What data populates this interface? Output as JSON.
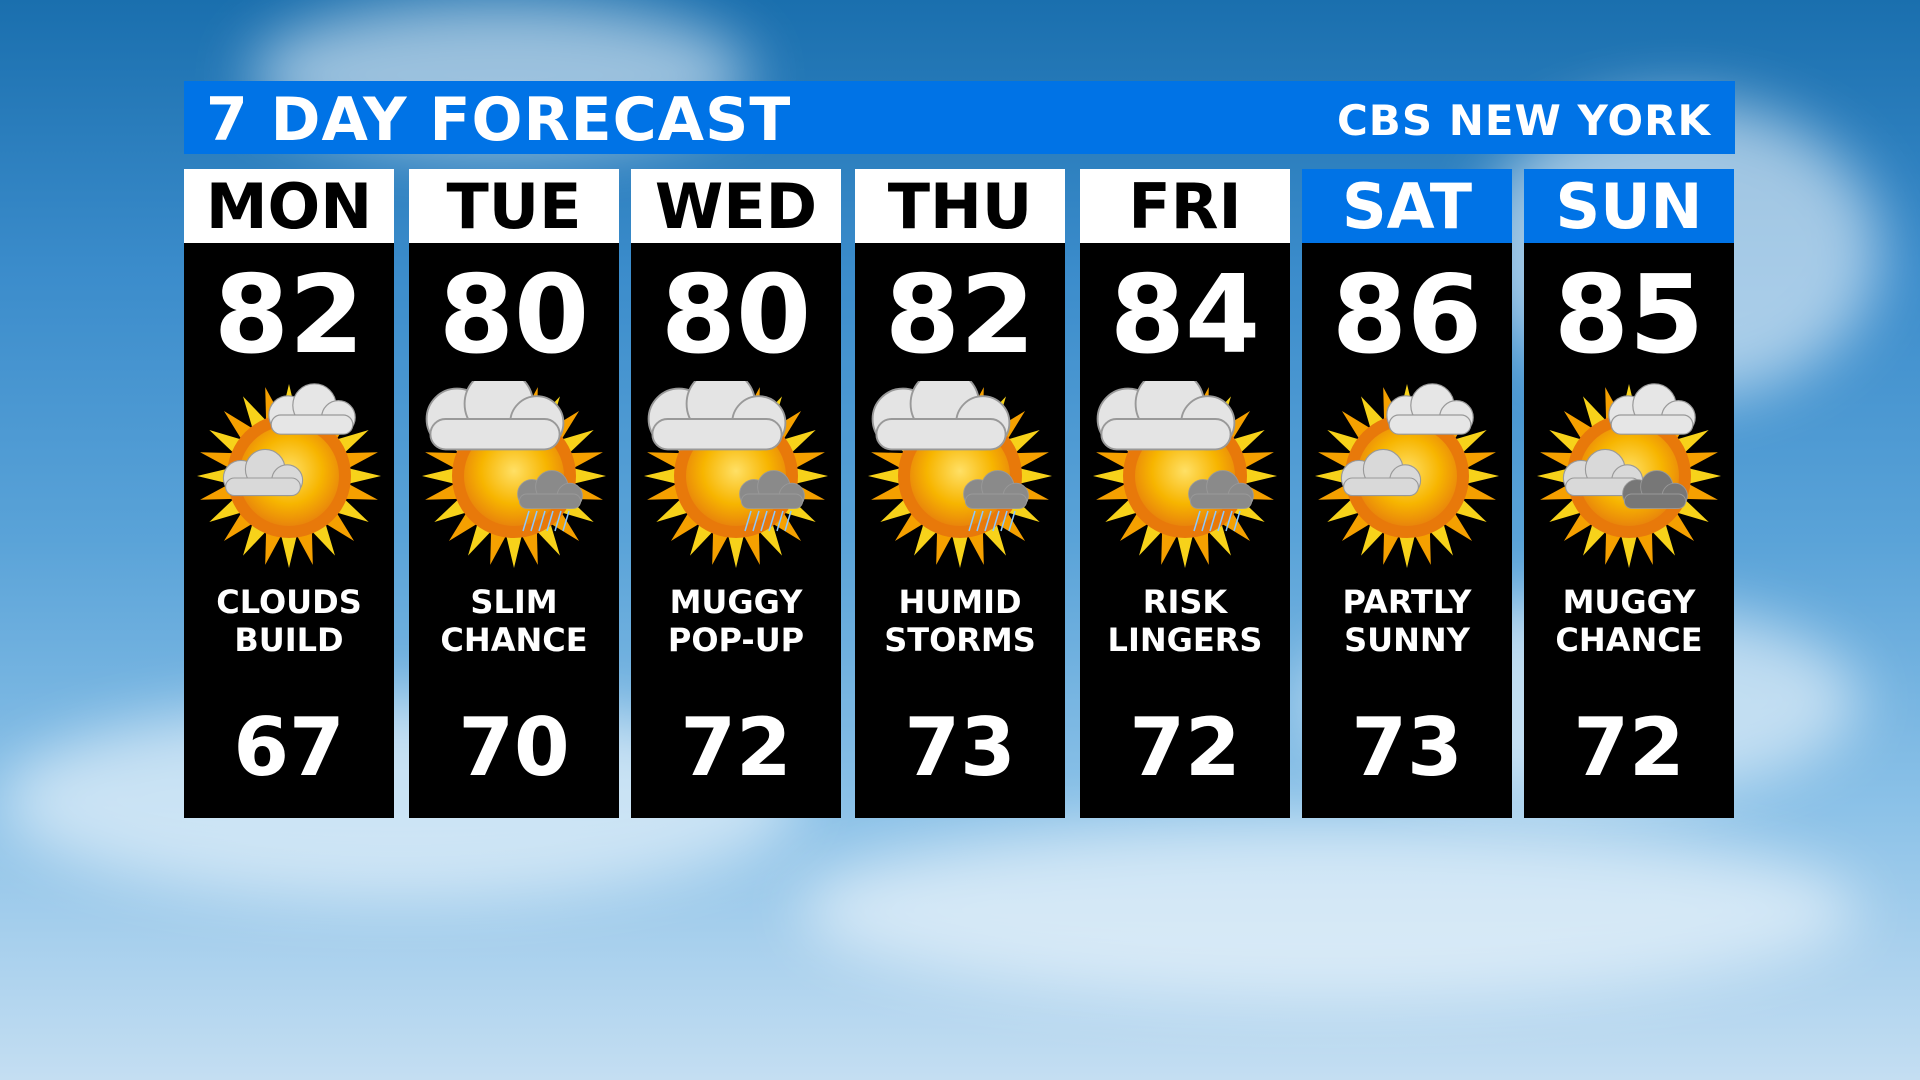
{
  "header": {
    "title": "7 DAY FORECAST",
    "brand": "CBS NEW YORK"
  },
  "colors": {
    "accent": "#0073e6",
    "panel": "#000000"
  },
  "days": [
    {
      "day": "MON",
      "high": "82",
      "desc1": "CLOUDS",
      "desc2": "BUILD",
      "low": "67",
      "icon": "partly-cloudy-icon",
      "weekend": false
    },
    {
      "day": "TUE",
      "high": "80",
      "desc1": "SLIM",
      "desc2": "CHANCE",
      "low": "70",
      "icon": "cloudy-storm-chance-icon",
      "weekend": false
    },
    {
      "day": "WED",
      "high": "80",
      "desc1": "MUGGY",
      "desc2": "POP-UP",
      "low": "72",
      "icon": "cloudy-storm-chance-icon",
      "weekend": false
    },
    {
      "day": "THU",
      "high": "82",
      "desc1": "HUMID",
      "desc2": "STORMS",
      "low": "73",
      "icon": "cloudy-storm-chance-icon",
      "weekend": false
    },
    {
      "day": "FRI",
      "high": "84",
      "desc1": "RISK",
      "desc2": "LINGERS",
      "low": "72",
      "icon": "cloudy-storm-chance-icon",
      "weekend": false
    },
    {
      "day": "SAT",
      "high": "86",
      "desc1": "PARTLY",
      "desc2": "SUNNY",
      "low": "73",
      "icon": "partly-cloudy-icon",
      "weekend": true
    },
    {
      "day": "SUN",
      "high": "85",
      "desc1": "MUGGY",
      "desc2": "CHANCE",
      "low": "72",
      "icon": "partly-cloudy-storm-icon",
      "weekend": true
    }
  ]
}
